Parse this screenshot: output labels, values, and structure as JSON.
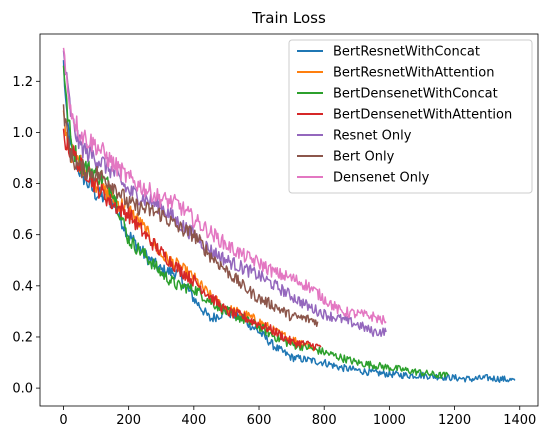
{
  "chart_data": {
    "type": "line",
    "title": "Train Loss",
    "xlabel": "",
    "ylabel": "",
    "xlim": [
      -72,
      1456
    ],
    "ylim": [
      -0.07,
      1.385
    ],
    "xticks": [
      0,
      200,
      400,
      600,
      800,
      1000,
      1200,
      1400
    ],
    "yticks": [
      0.0,
      0.2,
      0.4,
      0.6,
      0.8,
      1.0,
      1.2
    ],
    "xtick_labels": [
      "0",
      "200",
      "400",
      "600",
      "800",
      "1000",
      "1200",
      "1400"
    ],
    "ytick_labels": [
      "0.0",
      "0.2",
      "0.4",
      "0.6",
      "0.8",
      "1.0",
      "1.2"
    ],
    "grid": false,
    "legend_position": "top-right",
    "series": [
      {
        "name": "BertResnetWithConcat",
        "color": "#1f77b4",
        "x": [
          0,
          10,
          25,
          50,
          75,
          100,
          150,
          200,
          250,
          300,
          350,
          400,
          450,
          500,
          550,
          600,
          650,
          700,
          750,
          800,
          850,
          900,
          950,
          1000,
          1050,
          1100,
          1150,
          1200,
          1250,
          1300,
          1350,
          1385
        ],
        "y": [
          1.27,
          1.05,
          0.93,
          0.85,
          0.8,
          0.76,
          0.73,
          0.6,
          0.52,
          0.46,
          0.45,
          0.35,
          0.27,
          0.3,
          0.27,
          0.22,
          0.16,
          0.12,
          0.11,
          0.1,
          0.08,
          0.07,
          0.06,
          0.055,
          0.05,
          0.05,
          0.045,
          0.04,
          0.035,
          0.04,
          0.035,
          0.03
        ]
      },
      {
        "name": "BertResnetWithAttention",
        "color": "#ff7f0e",
        "x": [
          0,
          10,
          25,
          50,
          75,
          100,
          150,
          200,
          250,
          300,
          350,
          400,
          450,
          500,
          550,
          600,
          650,
          700,
          750,
          770
        ],
        "y": [
          1.05,
          0.98,
          0.92,
          0.88,
          0.85,
          0.8,
          0.74,
          0.7,
          0.62,
          0.52,
          0.48,
          0.43,
          0.36,
          0.31,
          0.29,
          0.26,
          0.22,
          0.19,
          0.17,
          0.15
        ]
      },
      {
        "name": "BertDensenetWithConcat",
        "color": "#2ca02c",
        "x": [
          0,
          10,
          25,
          50,
          75,
          100,
          150,
          200,
          250,
          300,
          350,
          400,
          450,
          500,
          550,
          600,
          650,
          700,
          750,
          800,
          850,
          900,
          950,
          1000,
          1050,
          1100,
          1150,
          1180
        ],
        "y": [
          1.28,
          1.1,
          0.95,
          0.88,
          0.86,
          0.84,
          0.78,
          0.58,
          0.52,
          0.45,
          0.4,
          0.39,
          0.34,
          0.3,
          0.27,
          0.24,
          0.2,
          0.17,
          0.16,
          0.14,
          0.12,
          0.1,
          0.09,
          0.08,
          0.07,
          0.06,
          0.05,
          0.05
        ]
      },
      {
        "name": "BertDensenetWithAttention",
        "color": "#d62728",
        "x": [
          0,
          10,
          25,
          50,
          75,
          100,
          150,
          200,
          250,
          300,
          350,
          400,
          450,
          500,
          550,
          600,
          650,
          700,
          750,
          790
        ],
        "y": [
          1.0,
          0.95,
          0.93,
          0.87,
          0.84,
          0.79,
          0.72,
          0.68,
          0.6,
          0.53,
          0.47,
          0.42,
          0.36,
          0.3,
          0.28,
          0.25,
          0.22,
          0.18,
          0.17,
          0.16
        ]
      },
      {
        "name": "Resnet Only",
        "color": "#9467bd",
        "x": [
          0,
          10,
          25,
          50,
          75,
          100,
          150,
          200,
          250,
          300,
          350,
          400,
          450,
          500,
          550,
          600,
          650,
          700,
          750,
          800,
          850,
          900,
          950,
          990
        ],
        "y": [
          1.32,
          1.2,
          1.05,
          0.95,
          0.92,
          0.9,
          0.85,
          0.77,
          0.74,
          0.71,
          0.65,
          0.6,
          0.54,
          0.5,
          0.47,
          0.44,
          0.4,
          0.36,
          0.32,
          0.29,
          0.27,
          0.25,
          0.22,
          0.22
        ]
      },
      {
        "name": "Bert Only",
        "color": "#8c564b",
        "x": [
          0,
          10,
          25,
          50,
          75,
          100,
          150,
          200,
          250,
          300,
          350,
          400,
          450,
          500,
          550,
          600,
          650,
          700,
          750,
          780
        ],
        "y": [
          1.1,
          1.0,
          0.9,
          0.86,
          0.85,
          0.84,
          0.8,
          0.72,
          0.7,
          0.68,
          0.63,
          0.6,
          0.52,
          0.46,
          0.4,
          0.35,
          0.32,
          0.28,
          0.27,
          0.26
        ]
      },
      {
        "name": "Densenet Only",
        "color": "#e377c2",
        "x": [
          0,
          10,
          25,
          50,
          75,
          100,
          150,
          200,
          250,
          300,
          350,
          400,
          450,
          500,
          550,
          600,
          650,
          700,
          750,
          800,
          850,
          900,
          950,
          990
        ],
        "y": [
          1.32,
          1.2,
          1.08,
          1.0,
          0.97,
          0.95,
          0.88,
          0.82,
          0.78,
          0.74,
          0.72,
          0.66,
          0.61,
          0.56,
          0.52,
          0.49,
          0.45,
          0.43,
          0.4,
          0.35,
          0.3,
          0.29,
          0.28,
          0.26
        ]
      }
    ]
  }
}
